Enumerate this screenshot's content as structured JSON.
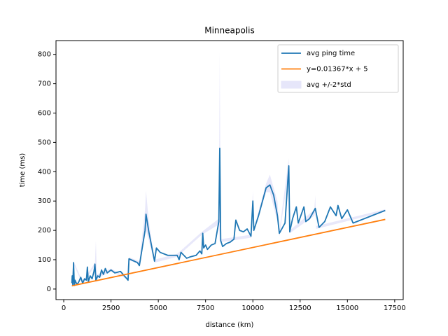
{
  "chart_data": {
    "type": "line",
    "title": "Minneapolis",
    "xlabel": "distance (km)",
    "ylabel": "time (ms)",
    "xlim": [
      -409,
      17949
    ],
    "ylim": [
      -36,
      847
    ],
    "xticks": [
      0,
      2500,
      5000,
      7500,
      10000,
      12500,
      15000,
      17500
    ],
    "yticks": [
      0,
      100,
      200,
      300,
      400,
      500,
      600,
      700,
      800
    ],
    "legend": "upper right",
    "series": [
      {
        "name": "avg ping time",
        "color": "#1f77b4",
        "x": [
          430,
          450,
          480,
          520,
          560,
          600,
          700,
          800,
          900,
          1000,
          1100,
          1200,
          1250,
          1300,
          1400,
          1500,
          1600,
          1650,
          1700,
          1800,
          1900,
          2000,
          2100,
          2200,
          2300,
          2500,
          2700,
          3000,
          3300,
          3400,
          3450,
          3900,
          4000,
          4300,
          4350,
          4500,
          4800,
          4900,
          5100,
          5500,
          6000,
          6100,
          6200,
          6500,
          6700,
          7000,
          7200,
          7300,
          7350,
          7400,
          7500,
          7600,
          7800,
          8000,
          8200,
          8250,
          8300,
          8400,
          8600,
          8800,
          9000,
          9100,
          9300,
          9500,
          9700,
          9900,
          10000,
          10050,
          10300,
          10700,
          10900,
          11100,
          11300,
          11400,
          11700,
          11900,
          11950,
          12100,
          12300,
          12400,
          12700,
          12800,
          13000,
          13300,
          13500,
          13800,
          14100,
          14400,
          14500,
          14700,
          15000,
          15300,
          17000
        ],
        "values": [
          20,
          45,
          15,
          90,
          12,
          30,
          15,
          25,
          40,
          20,
          35,
          30,
          75,
          25,
          45,
          35,
          60,
          85,
          30,
          45,
          40,
          65,
          50,
          70,
          55,
          65,
          55,
          60,
          38,
          30,
          103,
          90,
          80,
          200,
          255,
          195,
          95,
          140,
          125,
          115,
          115,
          100,
          125,
          105,
          110,
          115,
          130,
          120,
          190,
          140,
          150,
          135,
          150,
          155,
          230,
          480,
          165,
          145,
          155,
          160,
          170,
          235,
          200,
          195,
          205,
          180,
          300,
          200,
          250,
          345,
          355,
          320,
          250,
          190,
          225,
          420,
          195,
          240,
          280,
          225,
          280,
          230,
          240,
          275,
          210,
          230,
          280,
          250,
          285,
          240,
          270,
          225,
          268
        ]
      },
      {
        "name": "y=0.01367*x + 5",
        "color": "#ff7f0e",
        "x": [
          430,
          17000
        ],
        "values": [
          10.9,
          237.4
        ]
      },
      {
        "name": "avg +/-2*std",
        "color": "#e6e6fa",
        "type": "band",
        "x": [
          430,
          520,
          1000,
          1650,
          1700,
          1750,
          2500,
          3300,
          3450,
          4000,
          4300,
          4350,
          4500,
          4800,
          6000,
          7300,
          8200,
          8250,
          8300,
          9900,
          10000,
          10050,
          10700,
          10900,
          11300,
          11400,
          11900,
          11950,
          13250,
          13300,
          13350,
          17000
        ],
        "upper": [
          25,
          95,
          25,
          90,
          165,
          50,
          70,
          40,
          108,
          95,
          270,
          335,
          230,
          100,
          120,
          195,
          240,
          810,
          170,
          185,
          335,
          205,
          360,
          390,
          300,
          200,
          445,
          200,
          270,
          320,
          215,
          272
        ],
        "lower": [
          15,
          85,
          15,
          80,
          20,
          35,
          60,
          36,
          98,
          85,
          180,
          200,
          165,
          90,
          110,
          185,
          220,
          160,
          160,
          175,
          280,
          195,
          330,
          330,
          230,
          180,
          400,
          190,
          250,
          260,
          205,
          264
        ]
      }
    ]
  }
}
